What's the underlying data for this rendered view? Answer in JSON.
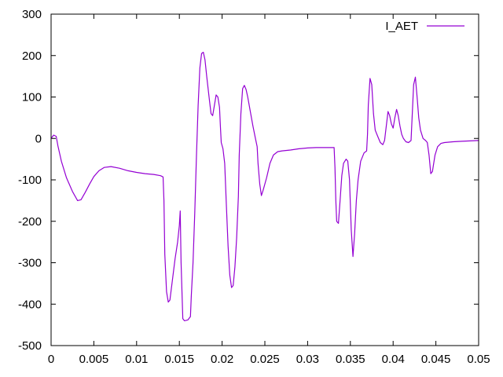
{
  "chart_data": {
    "type": "line",
    "title": "",
    "xlabel": "",
    "ylabel": "",
    "xlim": [
      0,
      0.05
    ],
    "ylim": [
      -500,
      300
    ],
    "x_ticks": [
      0,
      0.005,
      0.01,
      0.015,
      0.02,
      0.025,
      0.03,
      0.035,
      0.04,
      0.045,
      0.05
    ],
    "x_tick_labels": [
      "0",
      "0.005",
      "0.01",
      "0.015",
      "0.02",
      "0.025",
      "0.03",
      "0.035",
      "0.04",
      "0.045",
      "0.05"
    ],
    "y_ticks": [
      -500,
      -400,
      -300,
      -200,
      -100,
      0,
      100,
      200,
      300
    ],
    "y_tick_labels": [
      "-500",
      "-400",
      "-300",
      "-200",
      "-100",
      "0",
      "100",
      "200",
      "300"
    ],
    "grid": false,
    "legend_position": "top-right",
    "series": [
      {
        "name": "I_AET",
        "color": "#9400d3",
        "points": [
          [
            0,
            0
          ],
          [
            0.0003,
            8
          ],
          [
            0.0006,
            5
          ],
          [
            0.0008,
            -18
          ],
          [
            0.0012,
            -55
          ],
          [
            0.0018,
            -95
          ],
          [
            0.0025,
            -128
          ],
          [
            0.0031,
            -150
          ],
          [
            0.0035,
            -148
          ],
          [
            0.004,
            -130
          ],
          [
            0.0045,
            -110
          ],
          [
            0.005,
            -92
          ],
          [
            0.0056,
            -78
          ],
          [
            0.0062,
            -70
          ],
          [
            0.007,
            -68
          ],
          [
            0.008,
            -72
          ],
          [
            0.009,
            -78
          ],
          [
            0.01,
            -82
          ],
          [
            0.011,
            -85
          ],
          [
            0.012,
            -87
          ],
          [
            0.0128,
            -90
          ],
          [
            0.0131,
            -93
          ],
          [
            0.0132,
            -150
          ],
          [
            0.0133,
            -280
          ],
          [
            0.0135,
            -370
          ],
          [
            0.0137,
            -395
          ],
          [
            0.0139,
            -390
          ],
          [
            0.0142,
            -340
          ],
          [
            0.0145,
            -290
          ],
          [
            0.0148,
            -250
          ],
          [
            0.015,
            -210
          ],
          [
            0.0151,
            -175
          ],
          [
            0.0152,
            -300
          ],
          [
            0.0154,
            -435
          ],
          [
            0.0156,
            -440
          ],
          [
            0.016,
            -438
          ],
          [
            0.0163,
            -430
          ],
          [
            0.0164,
            -380
          ],
          [
            0.0166,
            -300
          ],
          [
            0.0168,
            -180
          ],
          [
            0.017,
            -40
          ],
          [
            0.0172,
            80
          ],
          [
            0.0174,
            170
          ],
          [
            0.0176,
            205
          ],
          [
            0.0178,
            208
          ],
          [
            0.018,
            190
          ],
          [
            0.0182,
            150
          ],
          [
            0.0185,
            95
          ],
          [
            0.0187,
            60
          ],
          [
            0.0189,
            55
          ],
          [
            0.0191,
            80
          ],
          [
            0.0193,
            105
          ],
          [
            0.0195,
            100
          ],
          [
            0.0197,
            75
          ],
          [
            0.0198,
            30
          ],
          [
            0.0199,
            -10
          ],
          [
            0.0201,
            -25
          ],
          [
            0.0203,
            -60
          ],
          [
            0.0205,
            -160
          ],
          [
            0.0207,
            -260
          ],
          [
            0.0209,
            -330
          ],
          [
            0.0211,
            -360
          ],
          [
            0.0213,
            -355
          ],
          [
            0.0215,
            -310
          ],
          [
            0.0217,
            -240
          ],
          [
            0.0219,
            -140
          ],
          [
            0.022,
            -40
          ],
          [
            0.0222,
            60
          ],
          [
            0.0224,
            120
          ],
          [
            0.0226,
            128
          ],
          [
            0.0228,
            118
          ],
          [
            0.023,
            100
          ],
          [
            0.0233,
            65
          ],
          [
            0.0236,
            30
          ],
          [
            0.0239,
            0
          ],
          [
            0.0241,
            -20
          ],
          [
            0.0242,
            -60
          ],
          [
            0.0244,
            -110
          ],
          [
            0.0246,
            -138
          ],
          [
            0.0248,
            -125
          ],
          [
            0.0252,
            -95
          ],
          [
            0.0256,
            -60
          ],
          [
            0.026,
            -40
          ],
          [
            0.0265,
            -32
          ],
          [
            0.027,
            -30
          ],
          [
            0.028,
            -28
          ],
          [
            0.029,
            -25
          ],
          [
            0.03,
            -23
          ],
          [
            0.031,
            -22
          ],
          [
            0.032,
            -22
          ],
          [
            0.0331,
            -22
          ],
          [
            0.0332,
            -70
          ],
          [
            0.0333,
            -150
          ],
          [
            0.0334,
            -200
          ],
          [
            0.0336,
            -205
          ],
          [
            0.0338,
            -150
          ],
          [
            0.034,
            -90
          ],
          [
            0.0342,
            -60
          ],
          [
            0.0345,
            -50
          ],
          [
            0.0347,
            -55
          ],
          [
            0.0349,
            -100
          ],
          [
            0.0351,
            -220
          ],
          [
            0.0353,
            -285
          ],
          [
            0.0355,
            -230
          ],
          [
            0.0357,
            -150
          ],
          [
            0.0359,
            -100
          ],
          [
            0.0362,
            -55
          ],
          [
            0.0366,
            -35
          ],
          [
            0.0369,
            -30
          ],
          [
            0.037,
            10
          ],
          [
            0.0371,
            80
          ],
          [
            0.0373,
            145
          ],
          [
            0.0375,
            130
          ],
          [
            0.0377,
            60
          ],
          [
            0.0379,
            20
          ],
          [
            0.0382,
            5
          ],
          [
            0.0385,
            -10
          ],
          [
            0.0388,
            -15
          ],
          [
            0.039,
            -5
          ],
          [
            0.0392,
            30
          ],
          [
            0.0394,
            65
          ],
          [
            0.0396,
            55
          ],
          [
            0.0398,
            35
          ],
          [
            0.04,
            25
          ],
          [
            0.0402,
            50
          ],
          [
            0.0404,
            70
          ],
          [
            0.0406,
            55
          ],
          [
            0.0408,
            30
          ],
          [
            0.041,
            10
          ],
          [
            0.0412,
            0
          ],
          [
            0.0415,
            -8
          ],
          [
            0.0418,
            -10
          ],
          [
            0.0421,
            -5
          ],
          [
            0.0422,
            40
          ],
          [
            0.0424,
            130
          ],
          [
            0.0426,
            148
          ],
          [
            0.0428,
            100
          ],
          [
            0.043,
            50
          ],
          [
            0.0432,
            20
          ],
          [
            0.0435,
            0
          ],
          [
            0.0438,
            -5
          ],
          [
            0.044,
            -10
          ],
          [
            0.0442,
            -40
          ],
          [
            0.0444,
            -85
          ],
          [
            0.0446,
            -80
          ],
          [
            0.0449,
            -40
          ],
          [
            0.0452,
            -20
          ],
          [
            0.0456,
            -12
          ],
          [
            0.046,
            -10
          ],
          [
            0.047,
            -8
          ],
          [
            0.048,
            -7
          ],
          [
            0.049,
            -6
          ],
          [
            0.05,
            -5
          ]
        ]
      }
    ]
  }
}
